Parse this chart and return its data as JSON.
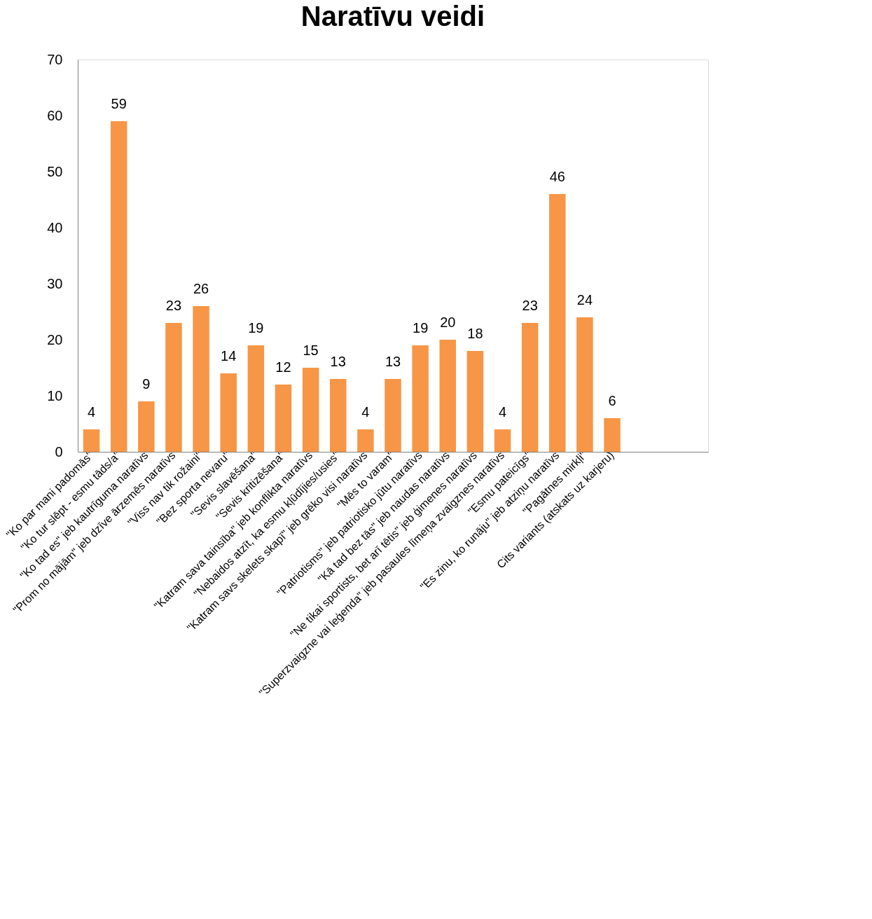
{
  "chart_data": {
    "type": "bar",
    "title": "Naratīvu veidi",
    "categories": [
      "\"Ko par mani padomās\"",
      "\"Ko tur slēpt - esmu tāds/a\"",
      "\"Ko tad es\" jeb kautrīguma naratīvs",
      "\"Prom no mājām\" jeb dzīve ārzemēs naratīvs",
      "\"Viss nav tik rožaini\"",
      "\"Bez sporta nevaru\"",
      "\"Sevis slavēšana\"",
      "\"Sevis kritizēšana\"",
      "\"Katram sava tainsība\" jeb konflikta naratīvs",
      "\"Nebaidos atzīt, ka esmu kļūdījies/usies\"",
      "\"Katram savs skelets skapī\" jeb grēko visi naratīvs",
      "\"Mēs to varam\"",
      "\"Patriotisms\" jeb patriotisko jūtu naratīvs",
      "\"Kā tad bez tās\" jeb naudas naratīvs",
      "\"Ne tikai sportists, bet arī tētis\" jeb ģimenes naratīvs",
      "\"Superzvaigzne vai leģenda\" jeb pasaules līmeņa zvaigznes naratīvs",
      "\"Esmu pateicīgs\"",
      "\"Es zinu, ko runāju\" jeb atziņu naratīvs",
      "\"Pagātnes mirkļi\"",
      "Cits variants (atskats uz karjeru)",
      null,
      null,
      null
    ],
    "values": [
      4,
      59,
      9,
      23,
      26,
      14,
      19,
      12,
      15,
      13,
      4,
      13,
      19,
      20,
      18,
      4,
      23,
      46,
      24,
      6,
      null,
      null,
      null
    ],
    "color": "#f79646",
    "ylim": [
      0,
      70
    ],
    "yticks": [
      0,
      10,
      20,
      30,
      40,
      50,
      60,
      70
    ],
    "grid": false,
    "data_labels": true
  }
}
